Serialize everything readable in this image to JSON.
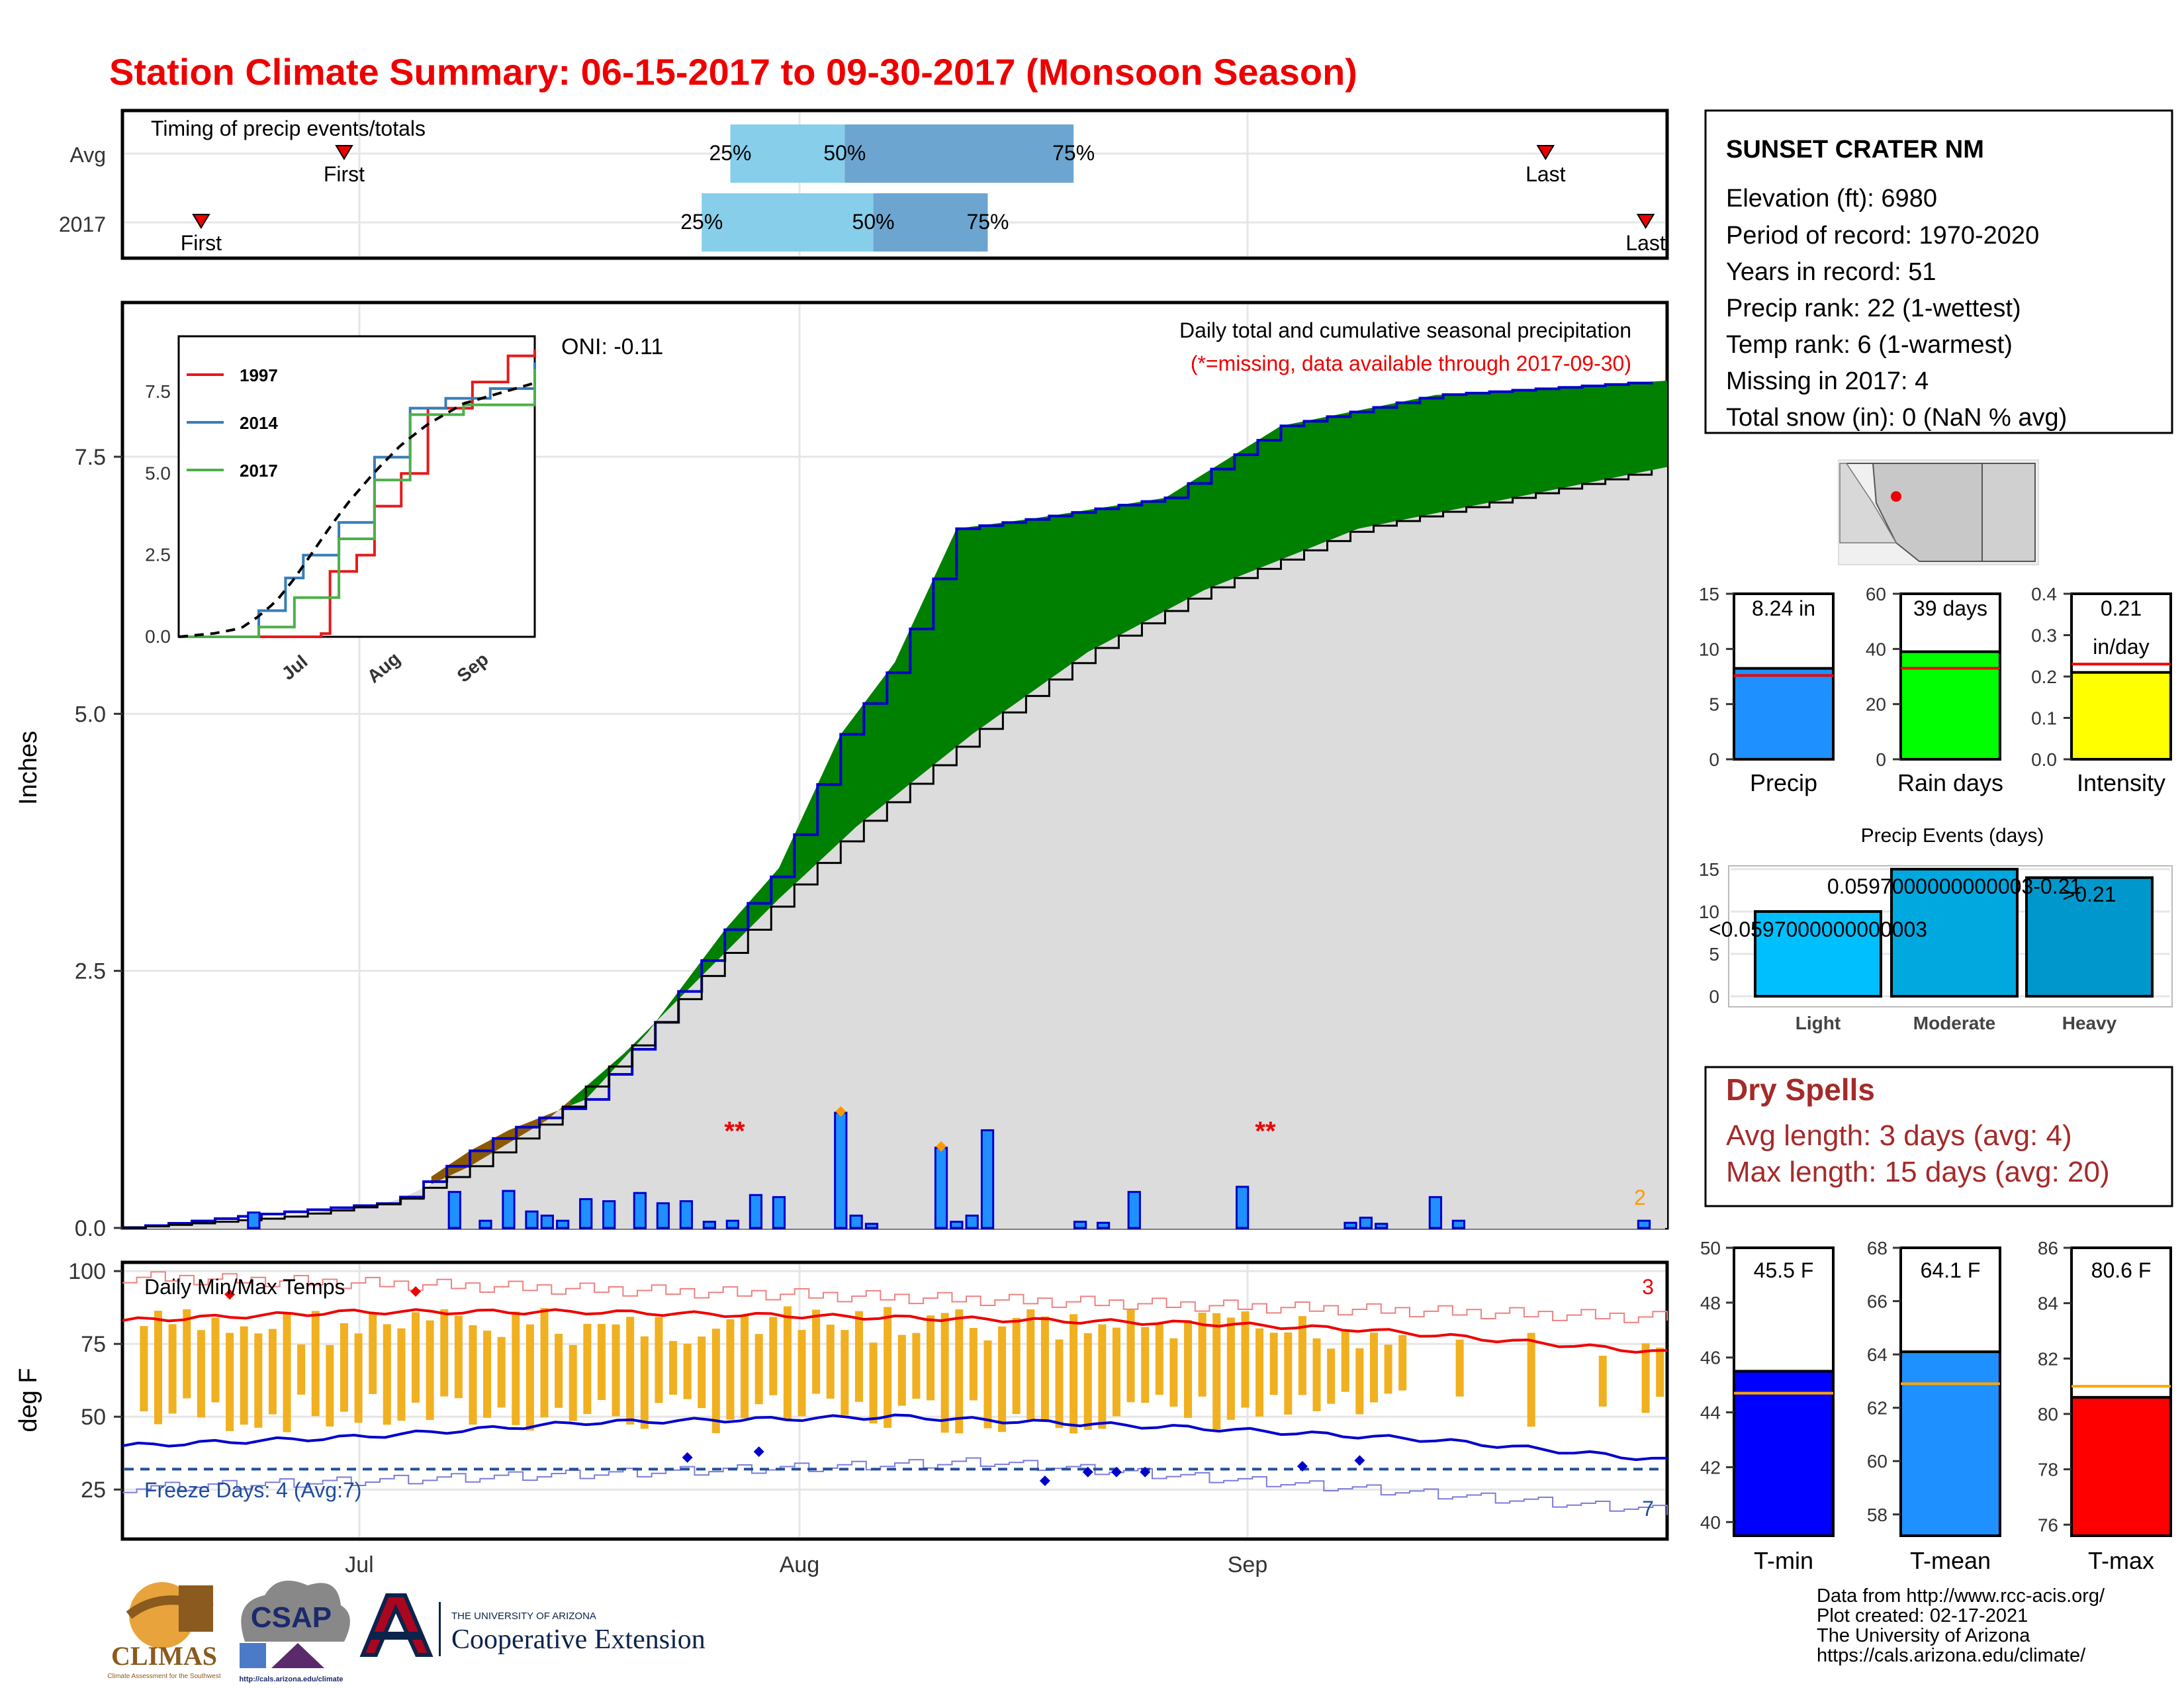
{
  "title": "Station Climate Summary: 06-15-2017 to 09-30-2017 (Monsoon Season)",
  "timing": {
    "label": "Timing of precip events/totals",
    "rows": [
      "Avg",
      "2017"
    ],
    "avg": {
      "first": "Jun 30",
      "q25": "Jul 27",
      "q50": "Aug 4",
      "q75": "Aug 20",
      "last": "Sep 22"
    },
    "y2017": {
      "first": "Jun 20",
      "q25": "Jul 25",
      "q50": "Aug 6",
      "q75": "Aug 14",
      "last": "Sep 29"
    },
    "marker_first": "First",
    "marker_last": "Last",
    "pct": [
      "25%",
      "50%",
      "75%"
    ]
  },
  "station": {
    "name": "SUNSET CRATER NM",
    "lines": [
      "Elevation (ft): 6980",
      "Period of record: 1970-2020",
      "Years in record: 51",
      "Precip rank: 22 (1-wettest)",
      "Temp rank: 6 (1-warmest)",
      "Missing in 2017: 4",
      "Total snow (in): 0 (NaN % avg)"
    ]
  },
  "precip_panel": {
    "ylabel": "Inches",
    "yticks": [
      "0.0",
      "2.5",
      "5.0",
      "7.5"
    ],
    "oni": "ONI: -0.11",
    "note1": "Daily total and cumulative seasonal precipitation",
    "note2": "(*=missing, data available through 2017-09-30)",
    "missing_marks": [
      "**",
      "**"
    ],
    "extreme_count": "2",
    "inset": {
      "legend": [
        "1997",
        "2014",
        "2017"
      ],
      "yticks": [
        "0.0",
        "2.5",
        "5.0",
        "7.5"
      ],
      "xticks": [
        "Jul",
        "Aug",
        "Sep"
      ]
    }
  },
  "temp_panel": {
    "ylabel": "deg F",
    "label": "Daily Min/Max Temps",
    "yticks": [
      "25",
      "50",
      "75",
      "100"
    ],
    "freeze": "Freeze Days: 4 (Avg:7)",
    "hot_count": "3",
    "cold_count": "7"
  },
  "xaxis": {
    "ticks": [
      "Jul",
      "Aug",
      "Sep"
    ]
  },
  "summary_bars": {
    "precip": {
      "label": "Precip",
      "value_text": "8.24 in",
      "value": 8.24,
      "avg": 7.6,
      "ymax": 15,
      "ticks": [
        "0",
        "5",
        "10",
        "15"
      ],
      "color": "#1e90ff"
    },
    "raindays": {
      "label": "Rain days",
      "value_text": "39 days",
      "value": 39,
      "avg": 33,
      "ymax": 60,
      "ticks": [
        "0",
        "20",
        "40",
        "60"
      ],
      "color": "#00ff00"
    },
    "intensity": {
      "label": "Intensity",
      "value_text": "0.21",
      "value_text2": "in/day",
      "value": 0.21,
      "avg": 0.23,
      "ymax": 0.4,
      "ticks": [
        "0.0",
        "0.1",
        "0.2",
        "0.3",
        "0.4"
      ],
      "color": "#ffff00"
    }
  },
  "precip_events": {
    "title": "Precip Events (days)",
    "categories": [
      "Light",
      "Moderate",
      "Heavy"
    ],
    "values": [
      10,
      15,
      14
    ],
    "range_labels": [
      "<0.0597000000000003",
      "0.0597000000000003-0.21",
      ">0.21"
    ],
    "ticks": [
      "0",
      "5",
      "10",
      "15"
    ],
    "colors": [
      "#00bfff",
      "#00a8e0",
      "#0098cc"
    ]
  },
  "dry_spells": {
    "title": "Dry Spells",
    "avg": "Avg length: 3 days (avg: 4)",
    "max": "Max length: 15 days (avg: 20)"
  },
  "temp_bars": {
    "tmin": {
      "label": "T-min",
      "value_text": "45.5 F",
      "value": 45.5,
      "avg": 44.7,
      "ymin": 39.5,
      "ymax": 50,
      "ticks": [
        "40",
        "42",
        "44",
        "46",
        "48",
        "50"
      ],
      "color": "#0000ff"
    },
    "tmean": {
      "label": "T-mean",
      "value_text": "64.1 F",
      "value": 64.1,
      "avg": 62.9,
      "ymin": 57.2,
      "ymax": 68,
      "ticks": [
        "58",
        "60",
        "62",
        "64",
        "66",
        "68"
      ],
      "color": "#1e90ff"
    },
    "tmax": {
      "label": "T-max",
      "value_text": "80.6 F",
      "value": 80.6,
      "avg": 81.0,
      "ymin": 75.6,
      "ymax": 86,
      "ticks": [
        "76",
        "78",
        "80",
        "82",
        "84",
        "86"
      ],
      "color": "#ff0000"
    }
  },
  "footer": {
    "lines": [
      "Data from http://www.rcc-acis.org/",
      "Plot created: 02-17-2021",
      "The University of Arizona",
      "https://cals.arizona.edu/climate/"
    ],
    "logos": {
      "climas": "CLIMAS",
      "climas_sub": "Climate Assessment for the Southwest",
      "csap": "CSAP",
      "csap_sub": "http://cals.arizona.edu/climate",
      "ua_small": "THE UNIVERSITY OF ARIZONA",
      "ua_big": "Cooperative Extension"
    }
  },
  "chart_data": [
    {
      "type": "area",
      "title": "Daily total and cumulative seasonal precipitation",
      "ylabel": "Inches",
      "ylim": [
        0,
        9
      ],
      "x": [
        "2017-06-15",
        "2017-09-30"
      ],
      "series": [
        {
          "name": "2017 cumulative",
          "points": [
            [
              0,
              0
            ],
            [
              20,
              0.15
            ],
            [
              35,
              0.25
            ],
            [
              45,
              0.75
            ],
            [
              50,
              0.95
            ],
            [
              60,
              1.25
            ],
            [
              68,
              1.9
            ],
            [
              78,
              2.9
            ],
            [
              85,
              3.5
            ],
            [
              93,
              4.8
            ],
            [
              100,
              5.5
            ],
            [
              108,
              6.8
            ],
            [
              118,
              6.9
            ],
            [
              135,
              7.1
            ],
            [
              150,
              7.8
            ],
            [
              170,
              8.1
            ],
            [
              200,
              8.24
            ]
          ]
        },
        {
          "name": "average cumulative",
          "points": [
            [
              0,
              0
            ],
            [
              20,
              0.1
            ],
            [
              35,
              0.25
            ],
            [
              45,
              0.6
            ],
            [
              55,
              1.05
            ],
            [
              65,
              1.7
            ],
            [
              75,
              2.45
            ],
            [
              85,
              3.2
            ],
            [
              95,
              3.9
            ],
            [
              110,
              4.8
            ],
            [
              125,
              5.6
            ],
            [
              140,
              6.2
            ],
            [
              160,
              6.8
            ],
            [
              180,
              7.1
            ],
            [
              200,
              7.4
            ]
          ]
        }
      ],
      "daily_bars": [
        {
          "day": 17,
          "in": 0.15
        },
        {
          "day": 43,
          "in": 0.35
        },
        {
          "day": 47,
          "in": 0.07
        },
        {
          "day": 50,
          "in": 0.36
        },
        {
          "day": 53,
          "in": 0.16
        },
        {
          "day": 55,
          "in": 0.12
        },
        {
          "day": 57,
          "in": 0.07
        },
        {
          "day": 60,
          "in": 0.28
        },
        {
          "day": 63,
          "in": 0.26
        },
        {
          "day": 67,
          "in": 0.34
        },
        {
          "day": 70,
          "in": 0.24
        },
        {
          "day": 73,
          "in": 0.26
        },
        {
          "day": 76,
          "in": 0.06
        },
        {
          "day": 79,
          "in": 0.07
        },
        {
          "day": 82,
          "in": 0.32
        },
        {
          "day": 85,
          "in": 0.3
        },
        {
          "day": 93,
          "in": 1.12
        },
        {
          "day": 95,
          "in": 0.12
        },
        {
          "day": 97,
          "in": 0.04
        },
        {
          "day": 106,
          "in": 0.78
        },
        {
          "day": 108,
          "in": 0.06
        },
        {
          "day": 110,
          "in": 0.12
        },
        {
          "day": 112,
          "in": 0.95
        },
        {
          "day": 124,
          "in": 0.06
        },
        {
          "day": 127,
          "in": 0.05
        },
        {
          "day": 131,
          "in": 0.35
        },
        {
          "day": 145,
          "in": 0.4
        },
        {
          "day": 159,
          "in": 0.05
        },
        {
          "day": 161,
          "in": 0.1
        },
        {
          "day": 163,
          "in": 0.04
        },
        {
          "day": 170,
          "in": 0.3
        },
        {
          "day": 173,
          "in": 0.07
        },
        {
          "day": 197,
          "in": 0.07
        }
      ]
    },
    {
      "type": "line",
      "title": "Daily Min/Max Temps",
      "ylabel": "deg F",
      "ylim": [
        8,
        103
      ],
      "series": [
        {
          "name": "avg max",
          "points": [
            [
              0,
              83
            ],
            [
              30,
              86
            ],
            [
              60,
              86
            ],
            [
              100,
              84
            ],
            [
              140,
              82
            ],
            [
              160,
              80
            ],
            [
              200,
              72
            ]
          ]
        },
        {
          "name": "avg min",
          "points": [
            [
              0,
              40
            ],
            [
              30,
              43
            ],
            [
              60,
              48
            ],
            [
              100,
              50
            ],
            [
              140,
              46
            ],
            [
              170,
              42
            ],
            [
              200,
              35
            ]
          ]
        }
      ]
    }
  ]
}
